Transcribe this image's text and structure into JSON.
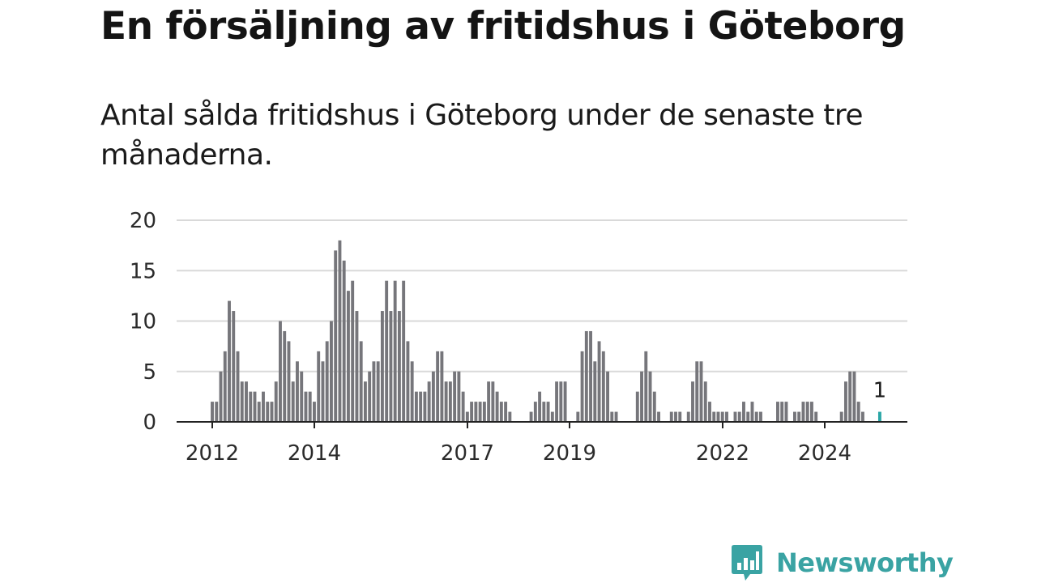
{
  "header": {
    "title": "En försäljning av fritidshus i Göteborg",
    "subtitle": "Antal sålda fritidshus i Göteborg under de senaste tre månaderna."
  },
  "colors": {
    "bar": "#76767b",
    "highlight": "#2aa6a6",
    "grid": "#d9d9d9",
    "axis": "#222222",
    "brand": "#3aa3a3"
  },
  "branding": {
    "logo_text": "Newsworthy",
    "logo_icon": "bar-chart-speech-bubble-icon"
  },
  "chart_data": {
    "type": "bar",
    "title": "En försäljning av fritidshus i Göteborg",
    "subtitle": "Antal sålda fritidshus i Göteborg under de senaste tre månaderna.",
    "xlabel": "",
    "ylabel": "",
    "ylim": [
      0,
      20
    ],
    "yticks": [
      0,
      5,
      10,
      15,
      20
    ],
    "grid": true,
    "legend": "none",
    "x_start": 2012.0,
    "x_step": 0.0833,
    "xtick_labels": [
      "2012",
      "2014",
      "2017",
      "2019",
      "2022",
      "2024"
    ],
    "xtick_positions": [
      2012,
      2014,
      2017,
      2019,
      2022,
      2024
    ],
    "highlight_label": "1",
    "series": [
      {
        "values": [
          2,
          2,
          5,
          7,
          12,
          11,
          7,
          4,
          4,
          3,
          3,
          2,
          3,
          2,
          2,
          4,
          10,
          9,
          8,
          4,
          6,
          5,
          3,
          3,
          2,
          7,
          6,
          8,
          10,
          17,
          18,
          16,
          13,
          14,
          11,
          8,
          4,
          5,
          6,
          6,
          11,
          14,
          11,
          14,
          11,
          14,
          8,
          6,
          3,
          3,
          3,
          4,
          5,
          7,
          7,
          4,
          4,
          5,
          5,
          3,
          1,
          2,
          2,
          2,
          2,
          4,
          4,
          3,
          2,
          2,
          1,
          0,
          0,
          0,
          0,
          1,
          2,
          3,
          2,
          2,
          1,
          4,
          4,
          4,
          0,
          0,
          1,
          7,
          9,
          9,
          6,
          8,
          7,
          5,
          1,
          1,
          0,
          0,
          0,
          0,
          3,
          5,
          7,
          5,
          3,
          1,
          0,
          0,
          1,
          1,
          1,
          0,
          1,
          4,
          6,
          6,
          4,
          2,
          1,
          1,
          1,
          1,
          0,
          1,
          1,
          2,
          1,
          2,
          1,
          1,
          0,
          0,
          0,
          2,
          2,
          2,
          0,
          1,
          1,
          2,
          2,
          2,
          1,
          0,
          0,
          0,
          0,
          0,
          1,
          4,
          5,
          5,
          2,
          1,
          0,
          0,
          0,
          1
        ]
      }
    ]
  }
}
